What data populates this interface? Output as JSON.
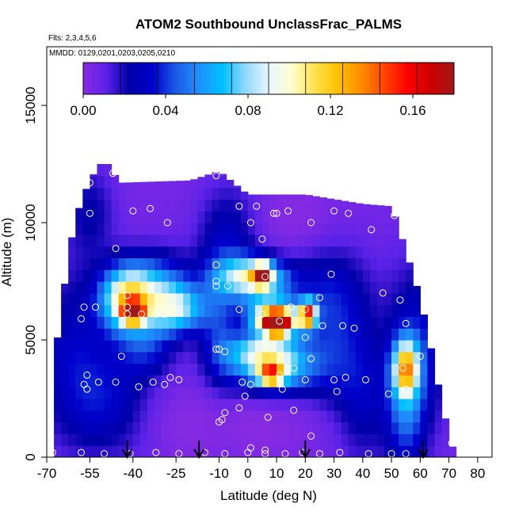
{
  "chart_data": {
    "type": "heatmap",
    "title": "ATOM2 Southbound UnclassFrac_PALMS",
    "subtitle_flights": "Flts: 2,3,4,5,6",
    "subtitle_dates": "MMDD: 0129,0201,0203,0205,0210",
    "xlabel": "Latitude (deg N)",
    "ylabel": "Altitude (m)",
    "xlim": [
      -70,
      85
    ],
    "ylim": [
      0,
      17500
    ],
    "x_ticks": [
      -70,
      -55,
      -40,
      -25,
      -10,
      0,
      10,
      20,
      30,
      40,
      50,
      60,
      70,
      80
    ],
    "x_tick_labels": [
      "-70",
      "-55",
      "-40",
      "-25",
      "-10",
      "0",
      "10",
      "20",
      "30",
      "40",
      "50",
      "60",
      "70",
      "80"
    ],
    "y_ticks": [
      0,
      5000,
      10000,
      15000
    ],
    "y_tick_labels": [
      "0",
      "5000",
      "10000",
      "15000"
    ],
    "colorbar": {
      "min": 0.0,
      "max": 0.18,
      "ticks": [
        0.0,
        0.04,
        0.08,
        0.12,
        0.16
      ],
      "tick_labels": [
        "0.00",
        "0.04",
        "0.08",
        "0.12",
        "0.16"
      ],
      "colors": [
        "#8a2be2",
        "#5a22e8",
        "#0000a8",
        "#0000cd",
        "#1c5ce6",
        "#1e90ff",
        "#00bfff",
        "#8fd8ff",
        "#e8f6ff",
        "#ffffd0",
        "#ffe14d",
        "#ffc000",
        "#ff8c00",
        "#ff4500",
        "#ff0000",
        "#cc0000",
        "#a01818"
      ]
    },
    "field": {
      "background": 0.005,
      "blobs": [
        {
          "lat": -60,
          "alt": 4500,
          "slat": 10,
          "salt": 2500,
          "v": 0.025
        },
        {
          "lat": -55,
          "alt": 10500,
          "slat": 6,
          "salt": 1300,
          "v": 0.018
        },
        {
          "lat": -42,
          "alt": 6700,
          "slat": 6,
          "salt": 900,
          "v": 0.085
        },
        {
          "lat": -40,
          "alt": 6200,
          "slat": 2.5,
          "salt": 300,
          "v": 0.13
        },
        {
          "lat": -33,
          "alt": 7300,
          "slat": 10,
          "salt": 1000,
          "v": 0.05
        },
        {
          "lat": -25,
          "alt": 6300,
          "slat": 7,
          "salt": 700,
          "v": 0.065
        },
        {
          "lat": -35,
          "alt": 4700,
          "slat": 7,
          "salt": 900,
          "v": 0.03
        },
        {
          "lat": -45,
          "alt": 2200,
          "slat": 12,
          "salt": 1500,
          "v": 0.025
        },
        {
          "lat": -10,
          "alt": 5200,
          "slat": 5,
          "salt": 2500,
          "v": 0.03
        },
        {
          "lat": -5,
          "alt": 9500,
          "slat": 8,
          "salt": 1500,
          "v": 0.022
        },
        {
          "lat": 2,
          "alt": 7700,
          "slat": 8,
          "salt": 600,
          "v": 0.09
        },
        {
          "lat": 5,
          "alt": 7800,
          "slat": 2,
          "salt": 300,
          "v": 0.13
        },
        {
          "lat": 8,
          "alt": 6300,
          "slat": 7,
          "salt": 600,
          "v": 0.05
        },
        {
          "lat": 10,
          "alt": 5800,
          "slat": 5,
          "salt": 400,
          "v": 0.13
        },
        {
          "lat": 10,
          "alt": 5700,
          "slat": 2,
          "salt": 250,
          "v": 0.16
        },
        {
          "lat": 21,
          "alt": 6100,
          "slat": 2,
          "salt": 400,
          "v": 0.12
        },
        {
          "lat": 8,
          "alt": 3800,
          "slat": 10,
          "salt": 800,
          "v": 0.08
        },
        {
          "lat": 8,
          "alt": 3500,
          "slat": 3,
          "salt": 300,
          "v": 0.1
        },
        {
          "lat": 5,
          "alt": 4600,
          "slat": 8,
          "salt": 500,
          "v": 0.05
        },
        {
          "lat": 28,
          "alt": 7000,
          "slat": 10,
          "salt": 1500,
          "v": 0.025
        },
        {
          "lat": 30,
          "alt": 4300,
          "slat": 8,
          "salt": 1800,
          "v": 0.022
        },
        {
          "lat": 55,
          "alt": 3800,
          "slat": 3,
          "salt": 800,
          "v": 0.09
        },
        {
          "lat": 55,
          "alt": 2200,
          "slat": 5,
          "salt": 2000,
          "v": 0.04
        },
        {
          "lat": 60,
          "alt": 5000,
          "slat": 8,
          "salt": 2500,
          "v": 0.025
        },
        {
          "lat": 40,
          "alt": 2500,
          "slat": 6,
          "salt": 2000,
          "v": 0.02
        }
      ],
      "low_zones": [
        {
          "lat": -20,
          "alt": 1500,
          "slat": 14,
          "salt": 1500
        },
        {
          "lat": 5,
          "alt": 1300,
          "slat": 15,
          "salt": 900
        },
        {
          "lat": 15,
          "alt": 10300,
          "slat": 10,
          "salt": 1000
        }
      ]
    },
    "coverage_top": [
      [
        -68,
        3500
      ],
      [
        -62,
        9000
      ],
      [
        -58,
        11000
      ],
      [
        -52,
        12500
      ],
      [
        -48,
        12500
      ],
      [
        -45,
        11700
      ],
      [
        -20,
        11800
      ],
      [
        -10,
        12200
      ],
      [
        0,
        11200
      ],
      [
        20,
        11200
      ],
      [
        40,
        10800
      ],
      [
        50,
        10700
      ],
      [
        52,
        10000
      ],
      [
        60,
        6800
      ],
      [
        64,
        4500
      ],
      [
        68,
        2000
      ],
      [
        71,
        600
      ],
      [
        72,
        0
      ]
    ],
    "measurements": [
      {
        "lat": -69,
        "alt": 3400
      },
      {
        "lat": -56,
        "alt": 3500
      },
      {
        "lat": -57,
        "alt": 3100
      },
      {
        "lat": -56,
        "alt": 2900
      },
      {
        "lat": -52,
        "alt": 3200
      },
      {
        "lat": -57,
        "alt": 6400
      },
      {
        "lat": -58,
        "alt": 5900
      },
      {
        "lat": -53,
        "alt": 6400
      },
      {
        "lat": -55,
        "alt": 11700
      },
      {
        "lat": -55,
        "alt": 10400
      },
      {
        "lat": -44,
        "alt": 12300
      },
      {
        "lat": -47,
        "alt": 12100
      },
      {
        "lat": -40,
        "alt": 10500
      },
      {
        "lat": -34,
        "alt": 10600
      },
      {
        "lat": -28,
        "alt": 10000
      },
      {
        "lat": -46,
        "alt": 8900
      },
      {
        "lat": -42,
        "alt": 6900
      },
      {
        "lat": -42,
        "alt": 6400
      },
      {
        "lat": -42,
        "alt": 6100
      },
      {
        "lat": -37,
        "alt": 6100
      },
      {
        "lat": -32,
        "alt": 6100
      },
      {
        "lat": -29,
        "alt": 6100
      },
      {
        "lat": -27,
        "alt": 6300
      },
      {
        "lat": -44,
        "alt": 4300
      },
      {
        "lat": -38,
        "alt": 3000
      },
      {
        "lat": -33,
        "alt": 3200
      },
      {
        "lat": -29,
        "alt": 3100
      },
      {
        "lat": -27,
        "alt": 3400
      },
      {
        "lat": -24,
        "alt": 3300
      },
      {
        "lat": -46,
        "alt": 3200
      },
      {
        "lat": -68,
        "alt": 200
      },
      {
        "lat": -58,
        "alt": 200
      },
      {
        "lat": -50,
        "alt": 150
      },
      {
        "lat": -41,
        "alt": 150
      },
      {
        "lat": -32,
        "alt": 200
      },
      {
        "lat": -24,
        "alt": 150
      },
      {
        "lat": -15,
        "alt": 200
      },
      {
        "lat": -8,
        "alt": 150
      },
      {
        "lat": 0,
        "alt": 200
      },
      {
        "lat": 6,
        "alt": 150
      },
      {
        "lat": 13,
        "alt": 150
      },
      {
        "lat": 19,
        "alt": 200
      },
      {
        "lat": 25,
        "alt": 150
      },
      {
        "lat": 32,
        "alt": 200
      },
      {
        "lat": 42,
        "alt": 150
      },
      {
        "lat": 50,
        "alt": 150
      },
      {
        "lat": 55,
        "alt": 150
      },
      {
        "lat": 71,
        "alt": 600
      },
      {
        "lat": -11,
        "alt": 12000
      },
      {
        "lat": -3,
        "alt": 10700
      },
      {
        "lat": 3,
        "alt": 10700
      },
      {
        "lat": 1,
        "alt": 10000
      },
      {
        "lat": 9,
        "alt": 10400
      },
      {
        "lat": 10,
        "alt": 10400
      },
      {
        "lat": 14,
        "alt": 10500
      },
      {
        "lat": 22,
        "alt": 10000
      },
      {
        "lat": 30,
        "alt": 10500
      },
      {
        "lat": 35,
        "alt": 10400
      },
      {
        "lat": 43,
        "alt": 9700
      },
      {
        "lat": 51,
        "alt": 10300
      },
      {
        "lat": 5,
        "alt": 9300
      },
      {
        "lat": -11,
        "alt": 8200
      },
      {
        "lat": -11,
        "alt": 7500
      },
      {
        "lat": -11,
        "alt": 7300
      },
      {
        "lat": -7,
        "alt": 7300
      },
      {
        "lat": -3,
        "alt": 6300
      },
      {
        "lat": 1,
        "alt": 7100
      },
      {
        "lat": 6,
        "alt": 7700
      },
      {
        "lat": 5,
        "alt": 6100
      },
      {
        "lat": 11,
        "alt": 5800
      },
      {
        "lat": 15,
        "alt": 6400
      },
      {
        "lat": 20,
        "alt": 6300
      },
      {
        "lat": 25,
        "alt": 6800
      },
      {
        "lat": 29,
        "alt": 7800
      },
      {
        "lat": 6,
        "alt": 4900
      },
      {
        "lat": 20,
        "alt": 5100
      },
      {
        "lat": 26,
        "alt": 5600
      },
      {
        "lat": 33,
        "alt": 5600
      },
      {
        "lat": 37,
        "alt": 5500
      },
      {
        "lat": -10,
        "alt": 4600
      },
      {
        "lat": -11,
        "alt": 4600
      },
      {
        "lat": -8,
        "alt": 4500
      },
      {
        "lat": 16,
        "alt": 3800
      },
      {
        "lat": 22,
        "alt": 4200
      },
      {
        "lat": 11,
        "alt": 3500
      },
      {
        "lat": 1,
        "alt": 3100
      },
      {
        "lat": -2,
        "alt": 3200
      },
      {
        "lat": 20,
        "alt": 3300
      },
      {
        "lat": 30,
        "alt": 3300
      },
      {
        "lat": 34,
        "alt": 3400
      },
      {
        "lat": 41,
        "alt": 3300
      },
      {
        "lat": 31,
        "alt": 2800
      },
      {
        "lat": 12,
        "alt": 2900
      },
      {
        "lat": -1,
        "alt": 2600
      },
      {
        "lat": -3,
        "alt": 2100
      },
      {
        "lat": -8,
        "alt": 1900
      },
      {
        "lat": -9,
        "alt": 1600
      },
      {
        "lat": -10,
        "alt": 1500
      },
      {
        "lat": 7,
        "alt": 1700
      },
      {
        "lat": 16,
        "alt": 2000
      },
      {
        "lat": 22,
        "alt": 900
      },
      {
        "lat": 47,
        "alt": 7000
      },
      {
        "lat": 53,
        "alt": 6700
      },
      {
        "lat": 55,
        "alt": 5700
      },
      {
        "lat": 60,
        "alt": 4300
      },
      {
        "lat": 54,
        "alt": 3800
      },
      {
        "lat": 55,
        "alt": 2900
      },
      {
        "lat": 49,
        "alt": 2700
      },
      {
        "lat": 1,
        "alt": 400
      },
      {
        "lat": 6,
        "alt": 300
      }
    ],
    "arrows_lat": [
      -42,
      -17,
      20,
      61
    ]
  }
}
